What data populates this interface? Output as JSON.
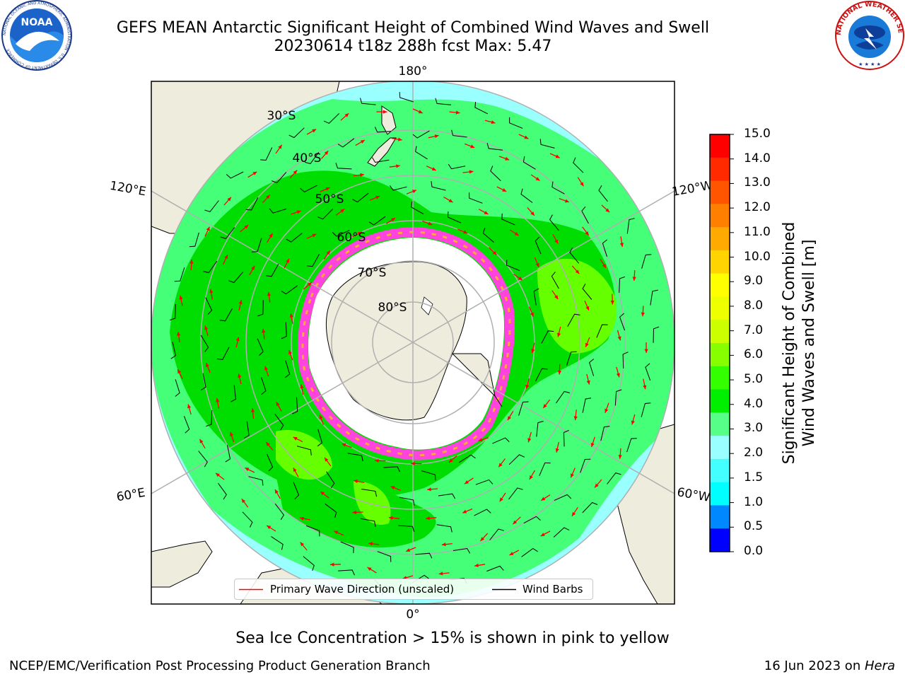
{
  "header": {
    "title_line1": "GEFS MEAN Antarctic Significant Height of Combined Wind Waves and Swell",
    "title_line2": "20230614 t18z 288h fcst   Max: 5.47",
    "left_logo_icon": "noaa-logo",
    "right_logo_icon": "nws-logo",
    "left_logo_text": "NOAA",
    "left_logo_ring_text": "NATIONAL OCEANIC AND ATMOSPHERIC ADMINISTRATION · U.S. DEPARTMENT OF COMMERCE",
    "right_logo_ring_text": "NATIONAL WEATHER SERVICE"
  },
  "map": {
    "projection": "south-polar-stereographic",
    "longitude_labels": [
      "180°",
      "120°E",
      "120°W",
      "60°E",
      "60°W",
      "0°"
    ],
    "latitude_labels": [
      "30°S",
      "40°S",
      "50°S",
      "60°S",
      "70°S",
      "80°S"
    ],
    "colors": {
      "land": "#eeecdc",
      "ocean_low": "#99ffff",
      "wave_3_4m": "#44ff77",
      "wave_4_5m": "#00dd00",
      "wave_5_6m": "#66ff00",
      "sea_ice": "#ff44dd",
      "arrow": "#ff0000",
      "barb": "#000000"
    }
  },
  "legend": {
    "primary_wave_label": "Primary Wave Direction (unscaled)",
    "wind_barbs_label": "Wind Barbs",
    "primary_wave_color": "#ff0000",
    "wind_barbs_color": "#000000"
  },
  "colorbar": {
    "title_line1": "Significant Height of Combined",
    "title_line2": "Wind Waves and Swell [m]",
    "ticks": [
      "15.0",
      "14.0",
      "13.0",
      "12.0",
      "11.0",
      "10.0",
      "9.0",
      "8.0",
      "7.0",
      "6.0",
      "5.0",
      "4.0",
      "3.0",
      "2.0",
      "1.5",
      "1.0",
      "0.5",
      "0.0"
    ],
    "colors_top_to_bottom": [
      "#ff0000",
      "#ff2a00",
      "#ff5500",
      "#ff8000",
      "#ffaa00",
      "#ffd400",
      "#ffff00",
      "#eeff00",
      "#ccff00",
      "#88ff00",
      "#33ff00",
      "#00ee00",
      "#55ff88",
      "#99ffff",
      "#44ffff",
      "#00ffff",
      "#0088ff",
      "#0000ff"
    ]
  },
  "notes": {
    "sea_ice": "Sea Ice Concentration > 15% is shown in pink to yellow"
  },
  "footer": {
    "left": "NCEP/EMC/Verification Post Processing Product Generation Branch",
    "date": "16 Jun 2023 on ",
    "machine": "Hera"
  }
}
